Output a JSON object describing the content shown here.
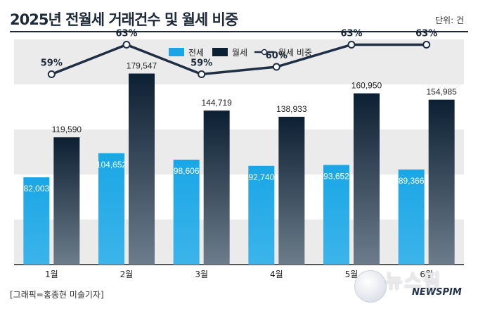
{
  "title": "2025년 전월세 거래건수 및 월세 비중",
  "unit": "단위: 건",
  "credit": "[그래픽=홍종현 미술기자]",
  "logo": {
    "korean": "뉴스핌",
    "english": "NEWSPIM"
  },
  "colors": {
    "jeonse": "#1aa6e6",
    "wolse_top": "#0c2033",
    "wolse_bottom": "#6c7c8a",
    "line": "#1e2f45",
    "band": "#ebebeb"
  },
  "chart_data": {
    "type": "bar",
    "categories": [
      "1월",
      "2월",
      "3월",
      "4월",
      "5월",
      "6월"
    ],
    "series": [
      {
        "name": "전세",
        "values": [
          82003,
          104652,
          98606,
          92740,
          93652,
          89366
        ],
        "labels": [
          "82,003",
          "104,652",
          "98,606",
          "92,740",
          "93,652",
          "89,366"
        ]
      },
      {
        "name": "월세",
        "values": [
          119590,
          179547,
          144719,
          138933,
          160950,
          154985
        ],
        "labels": [
          "119,590",
          "179,547",
          "144,719",
          "138,933",
          "160,950",
          "154,985"
        ]
      },
      {
        "name": "월세 비중",
        "type": "line",
        "values": [
          59,
          63,
          59,
          60,
          63,
          63
        ],
        "labels": [
          "59%",
          "63%",
          "59%",
          "60%",
          "63%",
          "63%"
        ]
      }
    ],
    "ylim": [
      0,
      200000
    ],
    "line_ylim": [
      50,
      70
    ],
    "legend": "top-center"
  }
}
